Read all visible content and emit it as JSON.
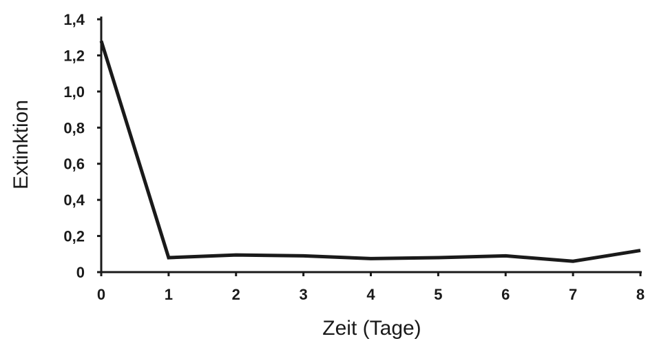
{
  "chart_data": {
    "type": "line",
    "title": "",
    "xlabel": "Zeit (Tage)",
    "ylabel": "Extinktion",
    "x": [
      0,
      1,
      2,
      3,
      4,
      5,
      6,
      7,
      8
    ],
    "x_tick_labels": [
      "0",
      "1",
      "2",
      "3",
      "4",
      "5",
      "6",
      "7",
      "8"
    ],
    "y_tick_values": [
      0,
      0.2,
      0.4,
      0.6,
      0.8,
      1.0,
      1.2,
      1.4
    ],
    "y_tick_labels": [
      "0",
      "0,2",
      "0,4",
      "0,6",
      "0,8",
      "1,0",
      "1,2",
      "1,4"
    ],
    "xlim": [
      0,
      8
    ],
    "ylim": [
      0,
      1.4
    ],
    "grid": false,
    "series": [
      {
        "values": [
          1.28,
          0.08,
          0.095,
          0.09,
          0.075,
          0.08,
          0.09,
          0.06,
          0.12
        ],
        "color": "#1a1a1a"
      }
    ]
  }
}
